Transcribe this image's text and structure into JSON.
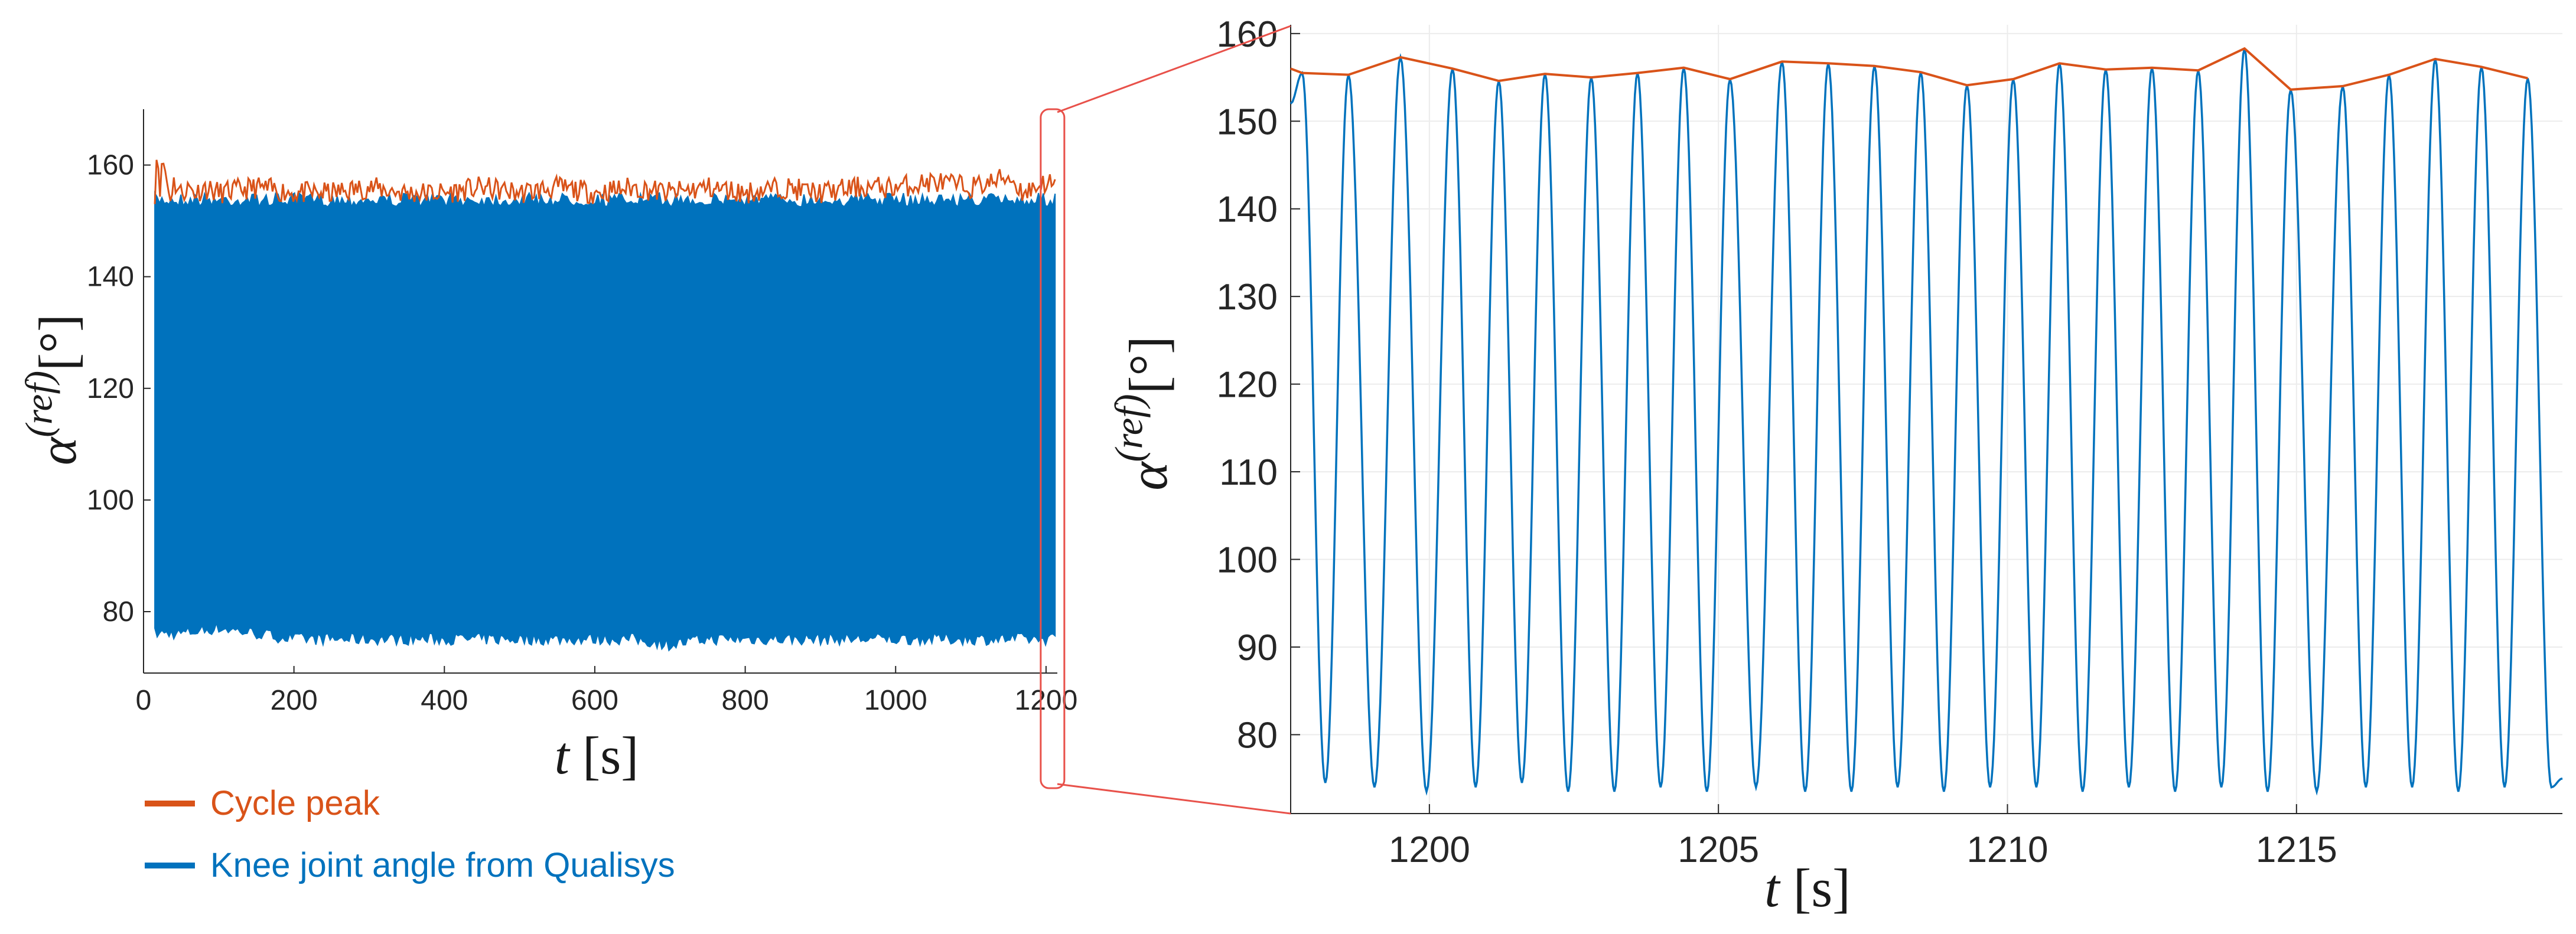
{
  "colors": {
    "cycle_peak": "#D95319",
    "knee_angle": "#0072BD",
    "zoom_box": "#E8514A",
    "axis": "#262626",
    "grid": "#ececec"
  },
  "legend": {
    "cycle_peak": "Cycle peak",
    "knee_angle": "Knee joint angle from Qualisys"
  },
  "chart_data": [
    {
      "type": "line",
      "panel": "overview",
      "xlabel_var": "t",
      "xlabel_unit": "[s]",
      "ylabel_var": "α",
      "ylabel_sup": "(ref)",
      "ylabel_unit": "[°]",
      "xlim": [
        0,
        1215
      ],
      "ylim": [
        69,
        170
      ],
      "xticks": [
        0,
        200,
        400,
        600,
        800,
        1000,
        1200
      ],
      "yticks": [
        80,
        100,
        120,
        140,
        160
      ],
      "grid": false,
      "data_range": [
        15,
        1212
      ],
      "series": [
        {
          "name": "Cycle peak",
          "x": [
            15,
            18,
            22,
            26,
            30,
            35,
            40,
            50,
            60,
            70,
            80,
            100,
            150,
            200,
            250,
            300,
            350,
            400,
            450,
            500,
            550,
            600,
            650,
            700,
            750,
            800,
            850,
            900,
            950,
            1000,
            1050,
            1100,
            1130,
            1150,
            1170,
            1200,
            1212
          ],
          "y": [
            155,
            163,
            156,
            161,
            158,
            154,
            157,
            155,
            156,
            155,
            156,
            155,
            156,
            155,
            155,
            156,
            155,
            155,
            156,
            155,
            156,
            155,
            156,
            155,
            156,
            155,
            156,
            155,
            156,
            156,
            157,
            156,
            157,
            158,
            155,
            157,
            156
          ]
        },
        {
          "name": "Knee joint angle from Qualisys",
          "x": [
            15,
            50,
            100,
            150,
            200,
            250,
            300,
            350,
            400,
            450,
            500,
            550,
            600,
            650,
            700,
            750,
            800,
            850,
            900,
            950,
            1000,
            1050,
            1100,
            1150,
            1212
          ],
          "ymax": [
            155,
            155,
            155,
            155,
            155,
            155,
            155,
            155,
            155,
            155,
            155,
            155,
            155,
            155,
            155,
            155,
            155,
            155,
            155,
            155,
            155,
            155,
            155,
            155,
            155
          ],
          "ymin": [
            75,
            75,
            76,
            75,
            74,
            74,
            74,
            74,
            74,
            74,
            74,
            74,
            74,
            74,
            73,
            74,
            74,
            74,
            74,
            74,
            74,
            74,
            74,
            74,
            74
          ]
        }
      ]
    },
    {
      "type": "line",
      "panel": "zoom",
      "xlabel_var": "t",
      "xlabel_unit": "[s]",
      "ylabel_var": "α",
      "ylabel_sup": "(ref)",
      "ylabel_unit": "[°]",
      "xlim": [
        1197.6,
        1219.6
      ],
      "ylim": [
        71,
        161
      ],
      "xticks": [
        1200,
        1205,
        1210,
        1215
      ],
      "yticks": [
        80,
        90,
        100,
        110,
        120,
        130,
        140,
        150,
        160
      ],
      "grid": true,
      "series": [
        {
          "name": "Cycle peak",
          "x": [
            1197.6,
            1197.8,
            1198.6,
            1199.5,
            1200.4,
            1201.2,
            1202.0,
            1202.8,
            1203.6,
            1204.4,
            1205.2,
            1206.1,
            1206.9,
            1207.7,
            1208.5,
            1209.3,
            1210.1,
            1210.9,
            1211.7,
            1212.5,
            1213.3,
            1214.1,
            1214.9,
            1215.8,
            1216.6,
            1217.4,
            1218.2,
            1219.0
          ],
          "y": [
            156,
            155.5,
            155.3,
            157.3,
            156.0,
            154.6,
            155.4,
            155.0,
            155.5,
            156.1,
            154.8,
            156.8,
            156.6,
            156.3,
            155.6,
            154.1,
            154.8,
            156.6,
            155.9,
            156.1,
            155.8,
            158.3,
            153.6,
            154.0,
            155.3,
            157.1,
            156.2,
            154.9
          ]
        },
        {
          "name": "Knee joint angle from Qualisys",
          "cycle_peaks": [
            1197.8,
            1198.6,
            1199.5,
            1200.4,
            1201.2,
            1202.0,
            1202.8,
            1203.6,
            1204.4,
            1205.2,
            1206.1,
            1206.9,
            1207.7,
            1208.5,
            1209.3,
            1210.1,
            1210.9,
            1211.7,
            1212.5,
            1213.3,
            1214.1,
            1214.9,
            1215.8,
            1216.6,
            1217.4,
            1218.2,
            1219.0
          ],
          "peak_values": [
            155.5,
            155.3,
            157.3,
            156.0,
            154.6,
            155.4,
            155.0,
            155.5,
            156.1,
            154.8,
            156.8,
            156.6,
            156.3,
            155.6,
            154.1,
            154.8,
            156.6,
            155.9,
            156.1,
            155.8,
            158.3,
            153.6,
            154.0,
            155.3,
            157.1,
            156.2,
            154.9
          ],
          "trough_values": [
            74.5,
            74.0,
            73.5,
            74.0,
            74.5,
            73.5,
            73.5,
            74.0,
            73.5,
            74.0,
            73.5,
            73.5,
            74.0,
            73.5,
            74.0,
            74.0,
            73.5,
            74.0,
            73.5,
            74.0,
            73.5,
            73.5,
            74.0,
            74.0,
            73.5,
            74.0,
            74.0
          ],
          "start": [
            1197.6,
            152
          ],
          "end": [
            1219.6,
            73
          ]
        }
      ]
    }
  ]
}
